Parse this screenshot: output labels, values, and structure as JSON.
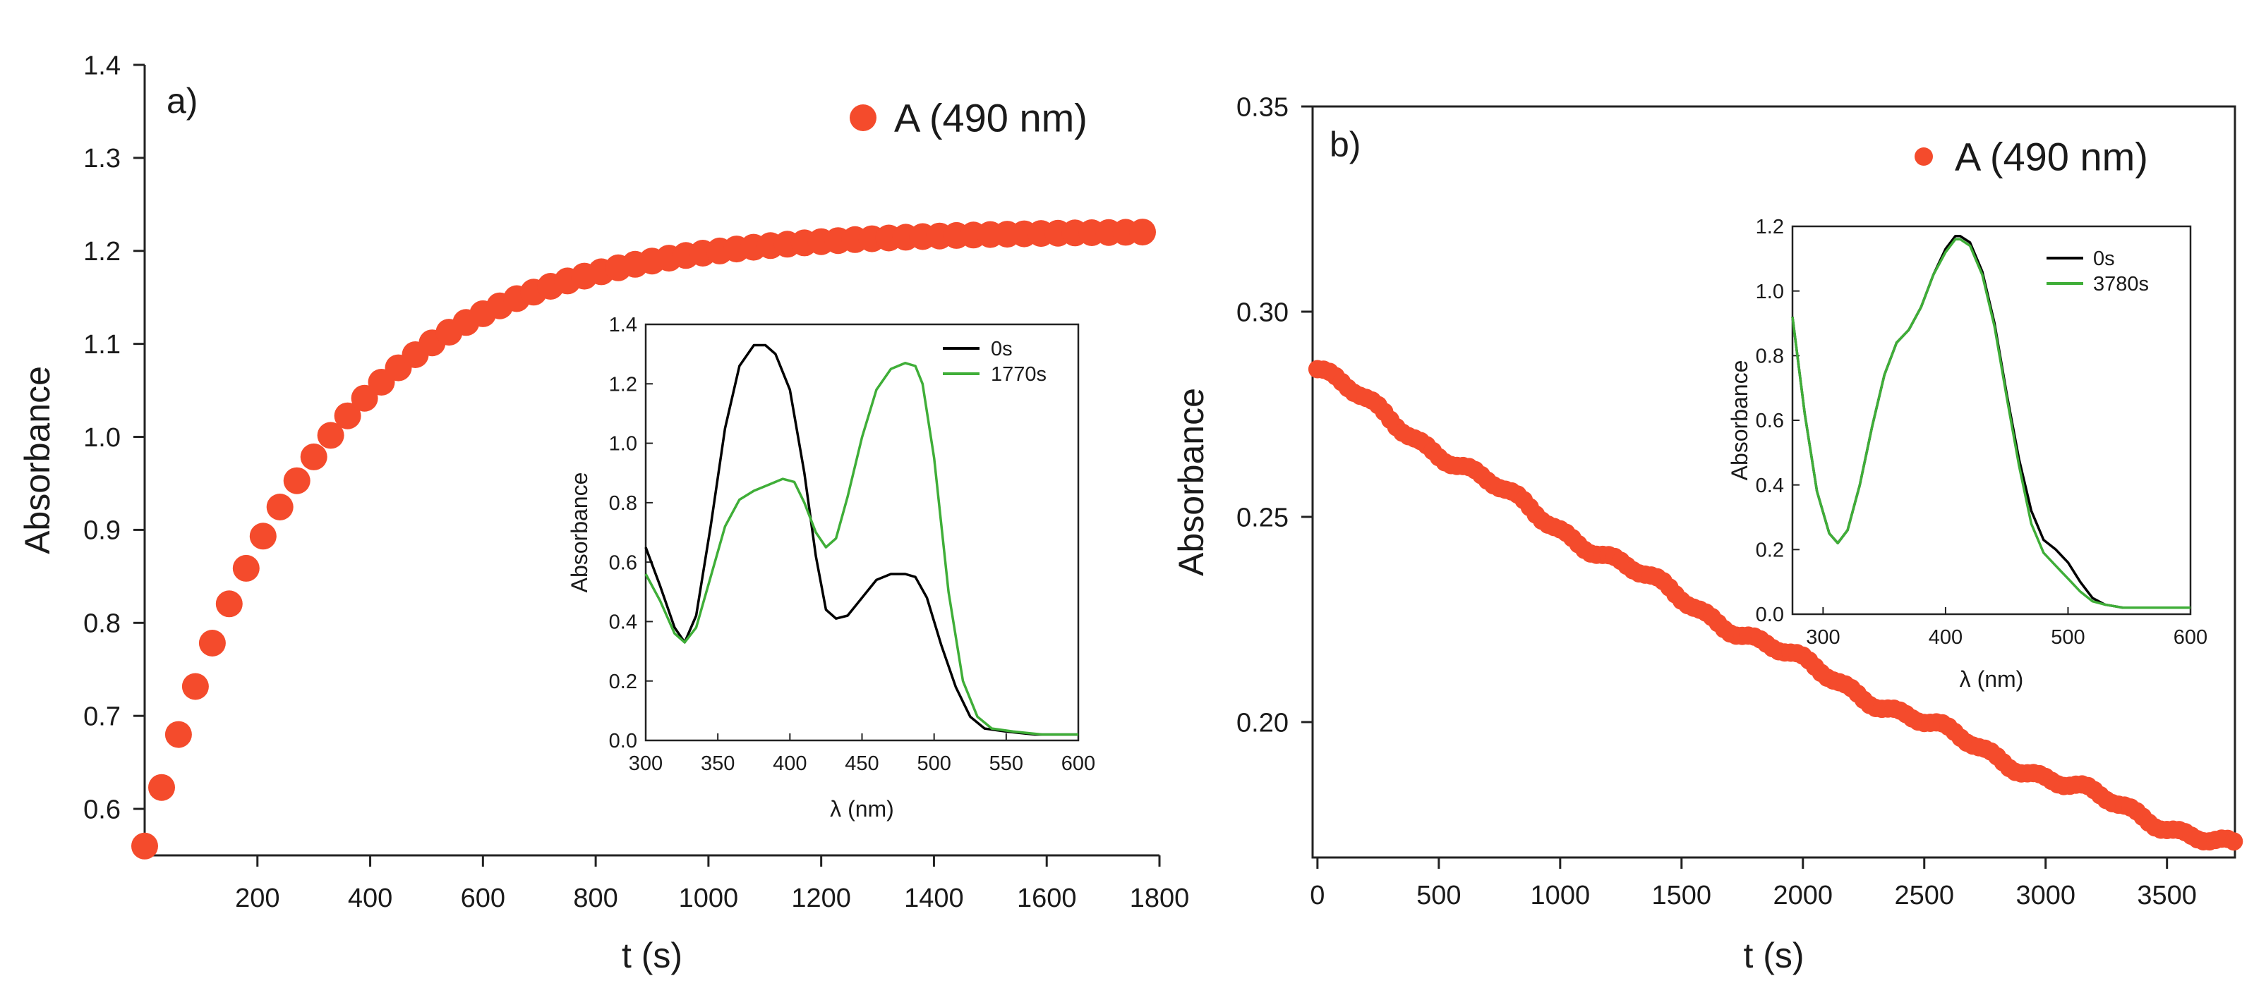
{
  "chart_data": [
    {
      "panel": "a)",
      "type": "scatter",
      "xlabel": "t (s)",
      "ylabel": "Absorbance",
      "xlim": [
        0,
        1800
      ],
      "ylim": [
        0.55,
        1.4
      ],
      "xticks": [
        200,
        400,
        600,
        800,
        1000,
        1200,
        1400,
        1600,
        1800
      ],
      "yticks": [
        0.6,
        0.7,
        0.8,
        0.9,
        1.0,
        1.1,
        1.2,
        1.3,
        1.4
      ],
      "ytick_labels": [
        "0.6",
        "0.7",
        "0.8",
        "0.9",
        "1.0",
        "1.1",
        "1.2",
        "1.3",
        "1.4"
      ],
      "legend": "A (490 nm)",
      "marker_color": "#f44b2c",
      "model": {
        "kind": "exp_rise",
        "y0": 0.56,
        "yinf": 1.222,
        "tau": 300
      },
      "x_start": 0,
      "x_end": 1780,
      "x_step": 30,
      "inset": {
        "type": "line",
        "xlabel": "λ (nm)",
        "ylabel": "Absorbance",
        "xlim": [
          300,
          600
        ],
        "ylim": [
          0,
          1.4
        ],
        "xticks": [
          300,
          350,
          400,
          450,
          500,
          550,
          600
        ],
        "yticks": [
          0.0,
          0.2,
          0.4,
          0.6,
          0.8,
          1.0,
          1.2,
          1.4
        ],
        "ytick_labels": [
          "0.0",
          "0.2",
          "0.4",
          "0.6",
          "0.8",
          "1.0",
          "1.2",
          "1.4"
        ],
        "series": [
          {
            "name": "0s",
            "color": "#000000",
            "x": [
              300,
              310,
              320,
              327,
              335,
              345,
              355,
              365,
              375,
              383,
              390,
              400,
              410,
              418,
              425,
              432,
              440,
              450,
              460,
              470,
              480,
              487,
              495,
              505,
              515,
              525,
              535,
              550,
              570,
              600
            ],
            "y": [
              0.65,
              0.52,
              0.38,
              0.33,
              0.42,
              0.72,
              1.05,
              1.26,
              1.33,
              1.33,
              1.3,
              1.18,
              0.9,
              0.62,
              0.44,
              0.41,
              0.42,
              0.48,
              0.54,
              0.56,
              0.56,
              0.55,
              0.48,
              0.32,
              0.18,
              0.08,
              0.04,
              0.03,
              0.02,
              0.02
            ]
          },
          {
            "name": "1770s",
            "color": "#3fae38",
            "x": [
              300,
              310,
              320,
              327,
              335,
              345,
              355,
              365,
              375,
              385,
              395,
              403,
              410,
              418,
              425,
              432,
              440,
              450,
              460,
              470,
              480,
              487,
              492,
              500,
              510,
              520,
              530,
              540,
              555,
              575,
              600
            ],
            "y": [
              0.56,
              0.47,
              0.36,
              0.33,
              0.38,
              0.55,
              0.72,
              0.81,
              0.84,
              0.86,
              0.88,
              0.87,
              0.8,
              0.7,
              0.65,
              0.68,
              0.82,
              1.02,
              1.18,
              1.25,
              1.27,
              1.26,
              1.2,
              0.95,
              0.5,
              0.2,
              0.08,
              0.04,
              0.03,
              0.02,
              0.02
            ]
          }
        ]
      }
    },
    {
      "panel": "b)",
      "type": "scatter",
      "xlabel": "t (s)",
      "ylabel": "Absorbance",
      "xlim": [
        -20,
        3780
      ],
      "ylim": [
        0.167,
        0.35
      ],
      "xticks": [
        0,
        500,
        1000,
        1500,
        2000,
        2500,
        3000,
        3500
      ],
      "yticks": [
        0.2,
        0.25,
        0.3,
        0.35
      ],
      "ytick_labels": [
        "0.20",
        "0.25",
        "0.30",
        "0.35"
      ],
      "legend": "A (490 nm)",
      "marker_color": "#f44b2c",
      "model": {
        "kind": "poly2_decay",
        "y0": 0.286,
        "b": 4.15e-05,
        "c": 2.8e-09
      },
      "x_start": 0,
      "x_end": 3780,
      "x_step": 25,
      "inset": {
        "type": "line",
        "xlabel": "λ (nm)",
        "ylabel": "Absorbance",
        "xlim": [
          275,
          600
        ],
        "ylim": [
          0,
          1.2
        ],
        "xticks": [
          300,
          400,
          500,
          600
        ],
        "yticks": [
          0.0,
          0.2,
          0.4,
          0.6,
          0.8,
          1.0,
          1.2
        ],
        "ytick_labels": [
          "0.0",
          "0.2",
          "0.4",
          "0.6",
          "0.8",
          "1.0",
          "1.2"
        ],
        "series": [
          {
            "name": "0s",
            "color": "#000000",
            "x": [
              275,
              285,
              295,
              305,
              312,
              320,
              330,
              340,
              350,
              360,
              370,
              380,
              390,
              400,
              408,
              412,
              420,
              430,
              440,
              450,
              460,
              470,
              480,
              490,
              500,
              510,
              520,
              530,
              545,
              570,
              600
            ],
            "y": [
              0.92,
              0.62,
              0.38,
              0.25,
              0.22,
              0.26,
              0.4,
              0.58,
              0.74,
              0.84,
              0.88,
              0.95,
              1.05,
              1.13,
              1.17,
              1.17,
              1.15,
              1.06,
              0.9,
              0.68,
              0.48,
              0.32,
              0.23,
              0.2,
              0.16,
              0.1,
              0.05,
              0.03,
              0.02,
              0.02,
              0.02
            ]
          },
          {
            "name": "3780s",
            "color": "#3fae38",
            "x": [
              275,
              285,
              295,
              305,
              312,
              320,
              330,
              340,
              350,
              360,
              370,
              380,
              390,
              400,
              408,
              412,
              420,
              430,
              440,
              450,
              460,
              470,
              480,
              490,
              500,
              510,
              520,
              530,
              545,
              570,
              600
            ],
            "y": [
              0.92,
              0.62,
              0.38,
              0.25,
              0.22,
              0.26,
              0.4,
              0.58,
              0.74,
              0.84,
              0.88,
              0.95,
              1.05,
              1.12,
              1.16,
              1.16,
              1.14,
              1.05,
              0.89,
              0.67,
              0.46,
              0.28,
              0.19,
              0.15,
              0.11,
              0.07,
              0.04,
              0.03,
              0.02,
              0.02,
              0.02
            ]
          }
        ]
      }
    }
  ]
}
